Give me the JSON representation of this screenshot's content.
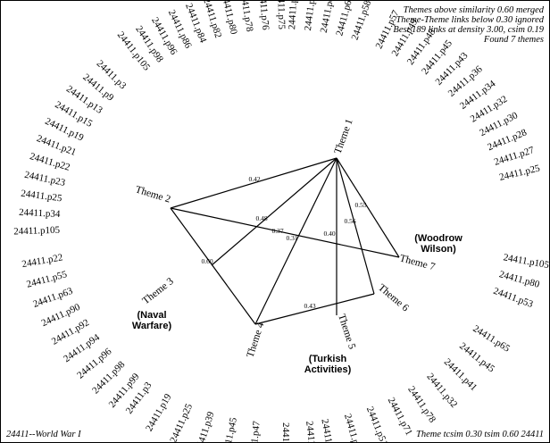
{
  "header_notes": [
    "Themes above similarity 0.60 merged",
    "Theme-Theme links below 0.30 ignored",
    "Best 189 links at density 3.00, csim 0.19",
    "Found 7 themes"
  ],
  "footer_left": "24411--World War I",
  "footer_right": "Theme tcsim 0.30 tsim 0.60 24411",
  "themes": [
    {
      "id": "t1",
      "label": "Theme 1"
    },
    {
      "id": "t2",
      "label": "Theme 2"
    },
    {
      "id": "t3",
      "label": "Theme 3"
    },
    {
      "id": "t4",
      "label": "Theme 4"
    },
    {
      "id": "t5",
      "label": "Theme 5"
    },
    {
      "id": "t6",
      "label": "Theme 6"
    },
    {
      "id": "t7",
      "label": "Theme 7"
    }
  ],
  "edges": [
    {
      "from": "t1",
      "to": "t2",
      "weight": "0.42"
    },
    {
      "from": "t1",
      "to": "t3",
      "weight": "0.48"
    },
    {
      "from": "t1",
      "to": "t4",
      "weight": "0.31"
    },
    {
      "from": "t1",
      "to": "t5",
      "weight": "0.40"
    },
    {
      "from": "t1",
      "to": "t6",
      "weight": "0.56"
    },
    {
      "from": "t1",
      "to": "t7",
      "weight": "0.55"
    },
    {
      "from": "t2",
      "to": "t7",
      "weight": "0.37"
    },
    {
      "from": "t2",
      "to": "t4",
      "weight": "0.60"
    },
    {
      "from": "t4",
      "to": "t6",
      "weight": "0.43"
    }
  ],
  "group_labels": [
    {
      "line1": "(Woodrow",
      "line2": "Wilson)"
    },
    {
      "line1": "(Naval",
      "line2": "Warfare)"
    },
    {
      "line1": "(Turkish",
      "line2": "Activities)"
    }
  ],
  "passages": [
    "24411.p105",
    "24411.p98",
    "24411.p96",
    "24411.p86",
    "24411.p84",
    "24411.p82",
    "24411.p80",
    "24411.p78",
    "24411.p76",
    "24411.p75",
    "24411.p69",
    "24411.p65",
    "24411.p63",
    "24411.p60",
    "24411.p58",
    "24411.p57",
    "24411.p49",
    "24411.p48",
    "24411.p45",
    "24411.p43",
    "24411.p36",
    "24411.p34",
    "24411.p32",
    "24411.p30",
    "24411.p28",
    "24411.p27",
    "24411.p25",
    "24411.p105",
    "24411.p80",
    "24411.p53",
    "24411.p65",
    "24411.p45",
    "24411.p41",
    "24411.p32",
    "24411.p78",
    "24411.p71",
    "24411.p51",
    "24411.p37",
    "24411.p36",
    "24411.p76",
    "24411.p67",
    "24411.p47",
    "24411.p45",
    "24411.p39",
    "24411.p25",
    "24411.p19",
    "24411.p3",
    "24411.p99",
    "24411.p98",
    "24411.p96",
    "24411.p94",
    "24411.p92",
    "24411.p90",
    "24411.p63",
    "24411.p55",
    "24411.p22",
    "24411.p105",
    "24411.p34",
    "24411.p25",
    "24411.p23",
    "24411.p22",
    "24411.p21",
    "24411.p19",
    "24411.p15",
    "24411.p13",
    "24411.p9",
    "24411.p3"
  ]
}
